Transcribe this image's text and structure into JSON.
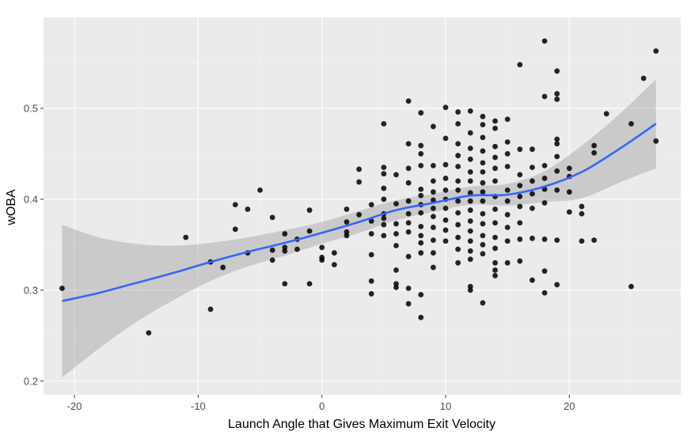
{
  "chart_data": {
    "type": "scatter",
    "title": "",
    "xlabel": "Launch Angle that Gives Maximum Exit Velocity",
    "ylabel": "wOBA",
    "xlim": [
      -22.5,
      29
    ],
    "ylim": [
      0.185,
      0.6
    ],
    "x_ticks": [
      -20,
      -10,
      0,
      10,
      20
    ],
    "y_ticks": [
      0.2,
      0.3,
      0.4,
      0.5
    ],
    "x_tick_labels": [
      "-20",
      "-10",
      "0",
      "10",
      "20"
    ],
    "y_tick_labels": [
      "0.2",
      "0.3",
      "0.4",
      "0.5"
    ],
    "grid": true,
    "colors": {
      "panel_background": "#ebebeb",
      "grid_major": "#ffffff",
      "grid_minor": "#f4f4f4",
      "point": "#000000",
      "smooth_line": "#3366ff",
      "confidence_band": "#999999"
    },
    "points": [
      [
        -21,
        0.302
      ],
      [
        -14,
        0.253
      ],
      [
        -11,
        0.358
      ],
      [
        -9,
        0.331
      ],
      [
        -9,
        0.279
      ],
      [
        -8,
        0.325
      ],
      [
        -7,
        0.394
      ],
      [
        -7,
        0.367
      ],
      [
        -6,
        0.389
      ],
      [
        -6,
        0.341
      ],
      [
        -5,
        0.41
      ],
      [
        -4,
        0.38
      ],
      [
        -4,
        0.344
      ],
      [
        -4,
        0.333
      ],
      [
        -3,
        0.362
      ],
      [
        -3,
        0.347
      ],
      [
        -3,
        0.343
      ],
      [
        -3,
        0.307
      ],
      [
        -2,
        0.345
      ],
      [
        -2,
        0.356
      ],
      [
        -1,
        0.388
      ],
      [
        -1,
        0.365
      ],
      [
        -1,
        0.307
      ],
      [
        0,
        0.347
      ],
      [
        0,
        0.336
      ],
      [
        0,
        0.333
      ],
      [
        1,
        0.341
      ],
      [
        1,
        0.328
      ],
      [
        2,
        0.389
      ],
      [
        2,
        0.375
      ],
      [
        2,
        0.36
      ],
      [
        2,
        0.364
      ],
      [
        3,
        0.433
      ],
      [
        3,
        0.419
      ],
      [
        3,
        0.383
      ],
      [
        4,
        0.394
      ],
      [
        4,
        0.376
      ],
      [
        4,
        0.362
      ],
      [
        4,
        0.339
      ],
      [
        4,
        0.31
      ],
      [
        4,
        0.296
      ],
      [
        5,
        0.483
      ],
      [
        5,
        0.435
      ],
      [
        5,
        0.428
      ],
      [
        5,
        0.412
      ],
      [
        5,
        0.4
      ],
      [
        5,
        0.384
      ],
      [
        5,
        0.379
      ],
      [
        5,
        0.372
      ],
      [
        5,
        0.36
      ],
      [
        6,
        0.427
      ],
      [
        6,
        0.395
      ],
      [
        6,
        0.373
      ],
      [
        6,
        0.362
      ],
      [
        6,
        0.349
      ],
      [
        6,
        0.322
      ],
      [
        6,
        0.303
      ],
      [
        6,
        0.307
      ],
      [
        7,
        0.508
      ],
      [
        7,
        0.461
      ],
      [
        7,
        0.434
      ],
      [
        7,
        0.418
      ],
      [
        7,
        0.398
      ],
      [
        7,
        0.384
      ],
      [
        7,
        0.374
      ],
      [
        7,
        0.364
      ],
      [
        7,
        0.337
      ],
      [
        7,
        0.302
      ],
      [
        7,
        0.285
      ],
      [
        8,
        0.495
      ],
      [
        8,
        0.459
      ],
      [
        8,
        0.45
      ],
      [
        8,
        0.437
      ],
      [
        8,
        0.411
      ],
      [
        8,
        0.404
      ],
      [
        8,
        0.394
      ],
      [
        8,
        0.385
      ],
      [
        8,
        0.37
      ],
      [
        8,
        0.36
      ],
      [
        8,
        0.352
      ],
      [
        8,
        0.341
      ],
      [
        8,
        0.295
      ],
      [
        8,
        0.27
      ],
      [
        9,
        0.48
      ],
      [
        9,
        0.437
      ],
      [
        9,
        0.42
      ],
      [
        9,
        0.408
      ],
      [
        9,
        0.399
      ],
      [
        9,
        0.39
      ],
      [
        9,
        0.381
      ],
      [
        9,
        0.369
      ],
      [
        9,
        0.355
      ],
      [
        9,
        0.341
      ],
      [
        9,
        0.325
      ],
      [
        10,
        0.501
      ],
      [
        10,
        0.467
      ],
      [
        10,
        0.438
      ],
      [
        10,
        0.423
      ],
      [
        10,
        0.41
      ],
      [
        10,
        0.4
      ],
      [
        10,
        0.39
      ],
      [
        10,
        0.377
      ],
      [
        10,
        0.366
      ],
      [
        10,
        0.354
      ],
      [
        11,
        0.496
      ],
      [
        11,
        0.483
      ],
      [
        11,
        0.461
      ],
      [
        11,
        0.448
      ],
      [
        11,
        0.436
      ],
      [
        11,
        0.42
      ],
      [
        11,
        0.41
      ],
      [
        11,
        0.398
      ],
      [
        11,
        0.385
      ],
      [
        11,
        0.372
      ],
      [
        11,
        0.358
      ],
      [
        11,
        0.345
      ],
      [
        11,
        0.33
      ],
      [
        12,
        0.497
      ],
      [
        12,
        0.473
      ],
      [
        12,
        0.456
      ],
      [
        12,
        0.444
      ],
      [
        12,
        0.43
      ],
      [
        12,
        0.42
      ],
      [
        12,
        0.407
      ],
      [
        12,
        0.398
      ],
      [
        12,
        0.388
      ],
      [
        12,
        0.376
      ],
      [
        12,
        0.365
      ],
      [
        12,
        0.354
      ],
      [
        12,
        0.343
      ],
      [
        12,
        0.334
      ],
      [
        12,
        0.304
      ],
      [
        12,
        0.3
      ],
      [
        13,
        0.491
      ],
      [
        13,
        0.482
      ],
      [
        13,
        0.468
      ],
      [
        13,
        0.453
      ],
      [
        13,
        0.44
      ],
      [
        13,
        0.43
      ],
      [
        13,
        0.418
      ],
      [
        13,
        0.408
      ],
      [
        13,
        0.398
      ],
      [
        13,
        0.384
      ],
      [
        13,
        0.373
      ],
      [
        13,
        0.36
      ],
      [
        13,
        0.35
      ],
      [
        13,
        0.34
      ],
      [
        13,
        0.286
      ],
      [
        14,
        0.486
      ],
      [
        14,
        0.478
      ],
      [
        14,
        0.458
      ],
      [
        14,
        0.446
      ],
      [
        14,
        0.434
      ],
      [
        14,
        0.42
      ],
      [
        14,
        0.403
      ],
      [
        14,
        0.389
      ],
      [
        14,
        0.374
      ],
      [
        14,
        0.358
      ],
      [
        14,
        0.346
      ],
      [
        14,
        0.33
      ],
      [
        14,
        0.322
      ],
      [
        14,
        0.316
      ],
      [
        15,
        0.488
      ],
      [
        15,
        0.463
      ],
      [
        15,
        0.45
      ],
      [
        15,
        0.436
      ],
      [
        15,
        0.41
      ],
      [
        15,
        0.398
      ],
      [
        15,
        0.383
      ],
      [
        15,
        0.369
      ],
      [
        15,
        0.354
      ],
      [
        15,
        0.33
      ],
      [
        16,
        0.548
      ],
      [
        16,
        0.455
      ],
      [
        16,
        0.427
      ],
      [
        16,
        0.415
      ],
      [
        16,
        0.403
      ],
      [
        16,
        0.392
      ],
      [
        16,
        0.374
      ],
      [
        16,
        0.356
      ],
      [
        16,
        0.332
      ],
      [
        17,
        0.455
      ],
      [
        17,
        0.435
      ],
      [
        17,
        0.42
      ],
      [
        17,
        0.406
      ],
      [
        17,
        0.39
      ],
      [
        17,
        0.357
      ],
      [
        17,
        0.311
      ],
      [
        18,
        0.574
      ],
      [
        18,
        0.513
      ],
      [
        18,
        0.437
      ],
      [
        18,
        0.423
      ],
      [
        18,
        0.411
      ],
      [
        18,
        0.396
      ],
      [
        18,
        0.356
      ],
      [
        18,
        0.321
      ],
      [
        18,
        0.297
      ],
      [
        19,
        0.541
      ],
      [
        19,
        0.516
      ],
      [
        19,
        0.51
      ],
      [
        19,
        0.466
      ],
      [
        19,
        0.461
      ],
      [
        19,
        0.447
      ],
      [
        19,
        0.431
      ],
      [
        19,
        0.41
      ],
      [
        19,
        0.355
      ],
      [
        19,
        0.306
      ],
      [
        20,
        0.434
      ],
      [
        20,
        0.425
      ],
      [
        20,
        0.408
      ],
      [
        20,
        0.386
      ],
      [
        21,
        0.392
      ],
      [
        21,
        0.384
      ],
      [
        21,
        0.354
      ],
      [
        22,
        0.459
      ],
      [
        22,
        0.451
      ],
      [
        22,
        0.355
      ],
      [
        23,
        0.494
      ],
      [
        25,
        0.483
      ],
      [
        25,
        0.304
      ],
      [
        26,
        0.533
      ],
      [
        27,
        0.563
      ],
      [
        27,
        0.464
      ]
    ],
    "smooth_fit": {
      "method": "loess",
      "x": [
        -21,
        -18,
        -15,
        -12,
        -9,
        -6,
        -3,
        0,
        3,
        6,
        9,
        12,
        15,
        18,
        21,
        24,
        27
      ],
      "y": [
        0.288,
        0.297,
        0.308,
        0.319,
        0.331,
        0.342,
        0.352,
        0.363,
        0.375,
        0.388,
        0.396,
        0.404,
        0.405,
        0.414,
        0.43,
        0.455,
        0.483
      ],
      "upper": [
        0.372,
        0.358,
        0.351,
        0.349,
        0.352,
        0.358,
        0.366,
        0.375,
        0.387,
        0.399,
        0.406,
        0.414,
        0.417,
        0.431,
        0.459,
        0.493,
        0.532
      ],
      "lower": [
        0.204,
        0.236,
        0.265,
        0.289,
        0.31,
        0.326,
        0.338,
        0.351,
        0.363,
        0.377,
        0.386,
        0.394,
        0.393,
        0.397,
        0.401,
        0.418,
        0.434
      ]
    }
  }
}
